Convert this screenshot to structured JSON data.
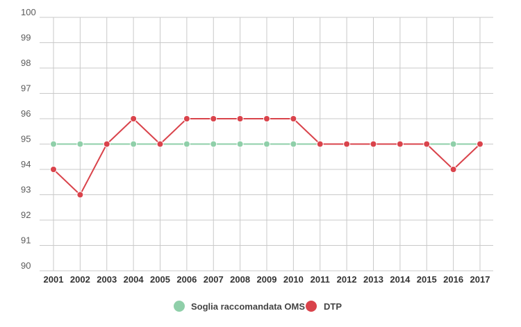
{
  "chart_data": {
    "type": "line",
    "x": [
      "2001",
      "2002",
      "2003",
      "2004",
      "2005",
      "2006",
      "2007",
      "2008",
      "2009",
      "2010",
      "2011",
      "2012",
      "2013",
      "2014",
      "2015",
      "2016",
      "2017"
    ],
    "ylim": [
      90,
      100
    ],
    "yticks": [
      90,
      91,
      92,
      93,
      94,
      95,
      96,
      97,
      98,
      99,
      100
    ],
    "grid": true,
    "legend_position": "bottom-center",
    "series": [
      {
        "name": "Soglia raccomandata OMS",
        "color": "#8fcfa9",
        "values": [
          95,
          95,
          95,
          95,
          95,
          95,
          95,
          95,
          95,
          95,
          95,
          95,
          95,
          95,
          95,
          95,
          95
        ]
      },
      {
        "name": "DTP",
        "color": "#d9434b",
        "values": [
          94,
          93,
          95,
          96,
          95,
          96,
          96,
          96,
          96,
          96,
          95,
          95,
          95,
          95,
          95,
          94,
          95
        ]
      }
    ]
  }
}
